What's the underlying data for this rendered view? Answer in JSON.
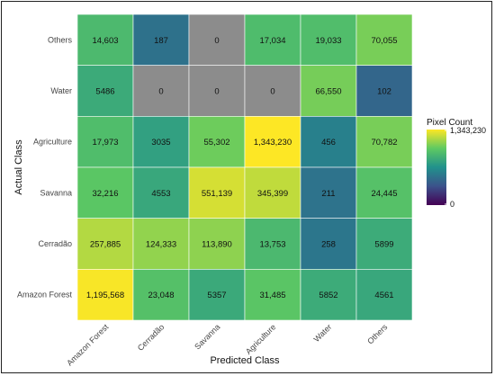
{
  "chart_data": {
    "type": "heatmap",
    "xlabel": "Predicted Class",
    "ylabel": "Actual Class",
    "x_categories": [
      "Amazon Forest",
      "Cerradão",
      "Savanna",
      "Agriculture",
      "Water",
      "Others"
    ],
    "y_categories": [
      "Others",
      "Water",
      "Agriculture",
      "Savanna",
      "Cerradão",
      "Amazon Forest"
    ],
    "values": [
      [
        14603,
        187,
        0,
        17034,
        19033,
        70055
      ],
      [
        5486,
        0,
        0,
        0,
        66550,
        102
      ],
      [
        17973,
        3035,
        55302,
        1343230,
        456,
        70782
      ],
      [
        32216,
        4553,
        551139,
        345399,
        211,
        24445
      ],
      [
        257885,
        124333,
        113890,
        13753,
        258,
        5899
      ],
      [
        1195568,
        23048,
        5357,
        31485,
        5852,
        4561
      ]
    ],
    "labels": [
      [
        "14,603",
        "187",
        "0",
        "17,034",
        "19,033",
        "70,055"
      ],
      [
        "5486",
        "0",
        "0",
        "0",
        "66,550",
        "102"
      ],
      [
        "17,973",
        "3035",
        "55,302",
        "1,343,230",
        "456",
        "70,782"
      ],
      [
        "32,216",
        "4553",
        "551,139",
        "345,399",
        "211",
        "24,445"
      ],
      [
        "257,885",
        "124,333",
        "113,890",
        "13,753",
        "258",
        "5899"
      ],
      [
        "1,195,568",
        "23,048",
        "5357",
        "31,485",
        "5852",
        "4561"
      ]
    ],
    "na_cells": [
      [
        0,
        2
      ],
      [
        1,
        1
      ],
      [
        1,
        2
      ],
      [
        1,
        3
      ]
    ],
    "na_color": "#8c8c8c",
    "legend": {
      "title": "Pixel Count",
      "max_label": "1,343,230",
      "min_label": "0",
      "range": [
        0,
        1343230
      ],
      "scale": "log",
      "colormap": "viridis",
      "placement": "right"
    }
  }
}
